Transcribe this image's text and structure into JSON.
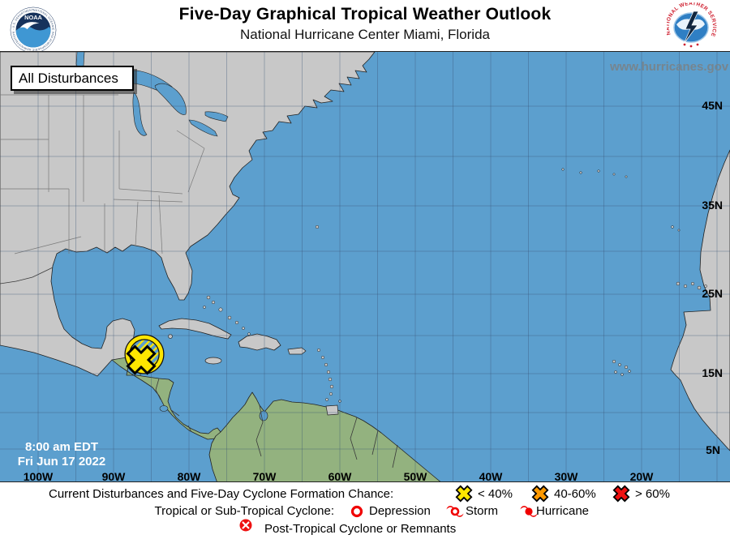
{
  "header": {
    "title": "Five-Day Graphical Tropical Weather Outlook",
    "subtitle": "National Hurricane Center  Miami, Florida",
    "noaa_logo_text": "NOAA",
    "noaa_ring_text": "NATIONAL OCEANIC AND ATMOSPHERIC ADMINISTRATION - U.S. DEPARTMENT OF COMMERCE",
    "nws_ring_text": "NATIONAL WEATHER SERVICE"
  },
  "map": {
    "mode_label": "All Disturbances",
    "watermark": "www.hurricanes.gov",
    "timestamp": {
      "line1": "8:00 am EDT",
      "line2": "Fri Jun 17 2022"
    },
    "lat_labels": [
      {
        "text": "45N"
      },
      {
        "text": "35N"
      },
      {
        "text": "25N"
      },
      {
        "text": "15N"
      },
      {
        "text": "5N"
      }
    ],
    "lon_labels": [
      {
        "text": "100W"
      },
      {
        "text": "90W"
      },
      {
        "text": "80W"
      },
      {
        "text": "70W"
      },
      {
        "text": "60W"
      },
      {
        "text": "50W"
      },
      {
        "text": "40W"
      },
      {
        "text": "30W"
      },
      {
        "text": "20W"
      }
    ],
    "disturbance": {
      "marker": "yellow-x",
      "area": "yellow-hatched-circle"
    }
  },
  "legend": {
    "row1": {
      "label": "Current Disturbances and Five-Day Cyclone Formation Chance:",
      "items": [
        {
          "icon": "x-yellow",
          "label": "< 40%"
        },
        {
          "icon": "x-orange",
          "label": "40-60%"
        },
        {
          "icon": "x-red",
          "label": "> 60%"
        }
      ]
    },
    "row2": {
      "label": "Tropical or Sub-Tropical Cyclone:",
      "items": [
        {
          "icon": "depression",
          "label": "Depression"
        },
        {
          "icon": "storm",
          "label": "Storm"
        },
        {
          "icon": "hurricane",
          "label": "Hurricane"
        }
      ]
    },
    "row3": {
      "items": [
        {
          "icon": "post-tropical",
          "label": "Post-Tropical Cyclone or Remnants"
        }
      ]
    }
  },
  "colors": {
    "ocean": "#5C9FCE",
    "land": "#C8C8C8",
    "tropic": "#93B27F",
    "low": "#FFE600",
    "medium": "#FF9900",
    "high": "#EE1111",
    "cyc": "#F00000"
  }
}
